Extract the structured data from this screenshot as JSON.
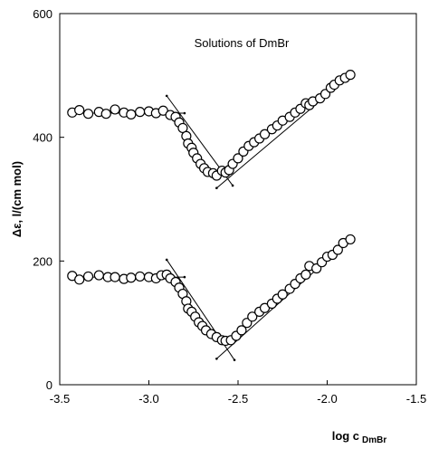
{
  "chart_data": {
    "type": "scatter",
    "annotation": "Solutions of DmBr",
    "ylabel": "Δε, l/(cm mol)",
    "xlabel": "log c",
    "xlabel_subscript": "DmBr",
    "xlim": [
      -3.5,
      -1.5
    ],
    "ylim": [
      0,
      600
    ],
    "xticks": [
      -3.5,
      -3.0,
      -2.5,
      -2.0,
      -1.5
    ],
    "xtick_labels": [
      "-3.5",
      "-3.0",
      "-2.5",
      "-2.0",
      "-1.5"
    ],
    "yticks": [
      0,
      200,
      400,
      600
    ],
    "ytick_labels": [
      "0",
      "200",
      "400",
      "600"
    ],
    "grid": false,
    "series": [
      {
        "x": [
          -3.43,
          -3.39,
          -3.34,
          -3.28,
          -3.24,
          -3.19,
          -3.14,
          -3.1,
          -3.05,
          -3.0,
          -2.96,
          -2.92,
          -2.88,
          -2.85,
          -2.83,
          -2.81,
          -2.79,
          -2.78,
          -2.76,
          -2.75,
          -2.73,
          -2.71,
          -2.69,
          -2.67,
          -2.64,
          -2.62,
          -2.59,
          -2.57,
          -2.55,
          -2.53,
          -2.5,
          -2.47,
          -2.44,
          -2.41,
          -2.38,
          -2.35,
          -2.31,
          -2.28,
          -2.25,
          -2.21,
          -2.18,
          -2.15,
          -2.12,
          -2.1,
          -2.08,
          -2.04,
          -2.01,
          -1.98,
          -1.96,
          -1.93,
          -1.9,
          -1.87
        ],
        "y": [
          440,
          444,
          438,
          441,
          438,
          445,
          440,
          437,
          441,
          442,
          439,
          443,
          436,
          433,
          424,
          415,
          402,
          390,
          383,
          375,
          366,
          357,
          350,
          344,
          342,
          338,
          346,
          343,
          347,
          357,
          366,
          377,
          386,
          392,
          398,
          405,
          413,
          419,
          427,
          433,
          440,
          446,
          455,
          452,
          458,
          463,
          470,
          480,
          485,
          492,
          496,
          501
        ],
        "fit_lines": [
          {
            "x": [
              -3.45,
              -2.8
            ],
            "y": [
              439,
              439
            ]
          },
          {
            "x": [
              -2.9,
              -2.53
            ],
            "y": [
              467,
              322
            ]
          },
          {
            "x": [
              -2.62,
              -1.87
            ],
            "y": [
              318,
              500
            ]
          }
        ]
      },
      {
        "x": [
          -3.43,
          -3.39,
          -3.34,
          -3.28,
          -3.23,
          -3.19,
          -3.14,
          -3.1,
          -3.05,
          -3.0,
          -2.96,
          -2.93,
          -2.9,
          -2.88,
          -2.85,
          -2.83,
          -2.81,
          -2.79,
          -2.78,
          -2.76,
          -2.74,
          -2.72,
          -2.7,
          -2.68,
          -2.65,
          -2.62,
          -2.59,
          -2.57,
          -2.54,
          -2.51,
          -2.48,
          -2.45,
          -2.42,
          -2.38,
          -2.35,
          -2.31,
          -2.28,
          -2.25,
          -2.21,
          -2.18,
          -2.15,
          -2.12,
          -2.1,
          -2.06,
          -2.03,
          -2.0,
          -1.97,
          -1.94,
          -1.91,
          -1.87
        ],
        "y": [
          176,
          170,
          175,
          177,
          174,
          174,
          171,
          173,
          175,
          174,
          172,
          177,
          178,
          172,
          166,
          157,
          147,
          135,
          123,
          118,
          110,
          101,
          95,
          88,
          82,
          77,
          72,
          71,
          72,
          79,
          88,
          100,
          110,
          118,
          124,
          131,
          139,
          146,
          155,
          163,
          172,
          178,
          192,
          188,
          198,
          207,
          210,
          218,
          229,
          235
        ],
        "fit_lines": [
          {
            "x": [
              -3.45,
              -2.8
            ],
            "y": [
              174,
              174
            ]
          },
          {
            "x": [
              -2.9,
              -2.52
            ],
            "y": [
              202,
              40
            ]
          },
          {
            "x": [
              -2.62,
              -1.87
            ],
            "y": [
              42,
              235
            ]
          }
        ]
      }
    ]
  }
}
